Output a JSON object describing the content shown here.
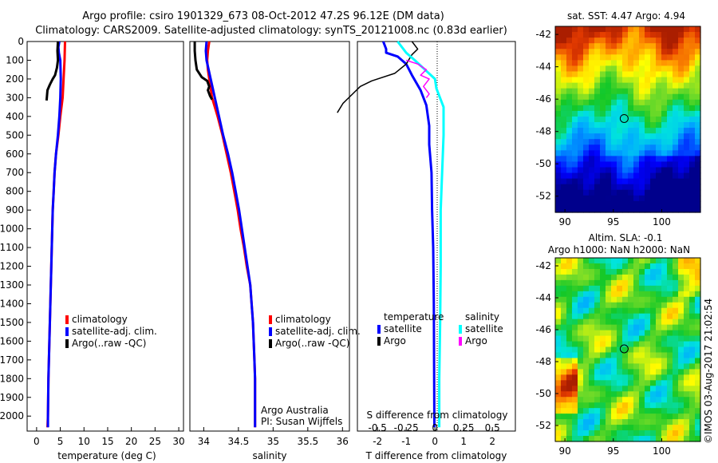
{
  "header": {
    "line1": "Argo profile: csiro 1901329_673 08-Oct-2012 47.2S 96.12E (DM data)",
    "line2": "Climatology: CARS2009. Satellite-adjusted climatology: synTS_20121008.nc (0.83d earlier)"
  },
  "credit": "©IMOS 03-Aug-2017 21:02:54",
  "colors": {
    "climatology": "#ff0000",
    "satellite": "#0000ff",
    "argo": "#000000",
    "sat_salinity": "#00ffff",
    "argo_salinity": "#ff00ff"
  },
  "chart_data": [
    {
      "type": "line",
      "id": "temperature",
      "xlabel": "temperature (deg C)",
      "xlim": [
        -2,
        31
      ],
      "ylim": [
        0,
        2080
      ],
      "xticks": [
        0,
        5,
        10,
        15,
        20,
        25,
        30
      ],
      "yticks": [
        0,
        100,
        200,
        300,
        400,
        500,
        600,
        700,
        800,
        900,
        1000,
        1100,
        1200,
        1300,
        1400,
        1500,
        1600,
        1700,
        1800,
        1900,
        2000
      ],
      "legend": [
        "climatology",
        "satellite-adj. clim.",
        "Argo(..raw -QC)"
      ],
      "series": [
        {
          "name": "climatology",
          "color": "#ff0000",
          "points": [
            [
              6.0,
              0
            ],
            [
              5.9,
              100
            ],
            [
              5.7,
              200
            ],
            [
              5.5,
              300
            ],
            [
              5.0,
              400
            ],
            [
              4.6,
              500
            ],
            [
              4.1,
              600
            ],
            [
              3.8,
              700
            ],
            [
              3.6,
              800
            ],
            [
              3.4,
              900
            ],
            [
              3.3,
              1000
            ],
            [
              3.1,
              1200
            ],
            [
              2.9,
              1400
            ],
            [
              2.7,
              1600
            ],
            [
              2.5,
              1800
            ],
            [
              2.4,
              2000
            ],
            [
              2.3,
              2060
            ]
          ]
        },
        {
          "name": "satellite-adj. clim.",
          "color": "#0000ff",
          "points": [
            [
              4.8,
              0
            ],
            [
              4.6,
              30
            ],
            [
              4.7,
              60
            ],
            [
              5.0,
              100
            ],
            [
              5.1,
              200
            ],
            [
              5.0,
              300
            ],
            [
              4.8,
              400
            ],
            [
              4.5,
              500
            ],
            [
              4.1,
              600
            ],
            [
              3.8,
              700
            ],
            [
              3.6,
              800
            ],
            [
              3.4,
              900
            ],
            [
              3.3,
              1000
            ],
            [
              3.1,
              1200
            ],
            [
              2.9,
              1400
            ],
            [
              2.7,
              1600
            ],
            [
              2.5,
              1800
            ],
            [
              2.4,
              2000
            ],
            [
              2.4,
              2060
            ]
          ]
        },
        {
          "name": "Argo(..raw -QC)",
          "color": "#000000",
          "points": [
            [
              4.5,
              0
            ],
            [
              4.4,
              50
            ],
            [
              4.5,
              100
            ],
            [
              4.3,
              140
            ],
            [
              3.9,
              180
            ],
            [
              3.4,
              200
            ],
            [
              2.8,
              230
            ],
            [
              2.3,
              260
            ],
            [
              2.2,
              290
            ],
            [
              2.1,
              315
            ]
          ]
        }
      ]
    },
    {
      "type": "line",
      "id": "salinity",
      "xlabel": "salinity",
      "xlim": [
        33.8,
        36.1
      ],
      "ylim": [
        0,
        2080
      ],
      "xticks": [
        34,
        34.5,
        35,
        35.5,
        36
      ],
      "legend": [
        "climatology",
        "satellite-adj. clim.",
        "Argo(..raw -QC)"
      ],
      "annotation": [
        "Argo Australia",
        "PI: Susan Wijffels"
      ],
      "series": [
        {
          "name": "climatology",
          "color": "#ff0000",
          "points": [
            [
              34.08,
              0
            ],
            [
              34.06,
              50
            ],
            [
              34.05,
              100
            ],
            [
              34.06,
              150
            ],
            [
              34.08,
              200
            ],
            [
              34.1,
              250
            ],
            [
              34.12,
              300
            ],
            [
              34.2,
              400
            ],
            [
              34.27,
              500
            ],
            [
              34.33,
              600
            ],
            [
              34.39,
              700
            ],
            [
              34.44,
              800
            ],
            [
              34.49,
              900
            ],
            [
              34.53,
              1000
            ],
            [
              34.58,
              1100
            ],
            [
              34.62,
              1200
            ],
            [
              34.67,
              1300
            ],
            [
              34.69,
              1400
            ],
            [
              34.71,
              1500
            ],
            [
              34.72,
              1600
            ],
            [
              34.73,
              1700
            ],
            [
              34.74,
              1800
            ],
            [
              34.74,
              2000
            ],
            [
              34.74,
              2060
            ]
          ]
        },
        {
          "name": "satellite-adj. clim.",
          "color": "#0000ff",
          "points": [
            [
              34.04,
              0
            ],
            [
              34.03,
              50
            ],
            [
              34.04,
              100
            ],
            [
              34.07,
              150
            ],
            [
              34.1,
              200
            ],
            [
              34.13,
              250
            ],
            [
              34.16,
              300
            ],
            [
              34.22,
              400
            ],
            [
              34.28,
              500
            ],
            [
              34.35,
              600
            ],
            [
              34.41,
              700
            ],
            [
              34.46,
              800
            ],
            [
              34.51,
              900
            ],
            [
              34.55,
              1000
            ],
            [
              34.59,
              1100
            ],
            [
              34.63,
              1200
            ],
            [
              34.67,
              1300
            ],
            [
              34.69,
              1400
            ],
            [
              34.71,
              1500
            ],
            [
              34.72,
              1600
            ],
            [
              34.73,
              1700
            ],
            [
              34.74,
              1800
            ],
            [
              34.74,
              2000
            ],
            [
              34.74,
              2060
            ]
          ]
        },
        {
          "name": "Argo(..raw -QC)",
          "color": "#000000",
          "points": [
            [
              33.87,
              0
            ],
            [
              33.87,
              50
            ],
            [
              33.88,
              100
            ],
            [
              33.9,
              150
            ],
            [
              33.97,
              190
            ],
            [
              34.05,
              210
            ],
            [
              34.08,
              240
            ],
            [
              34.06,
              260
            ],
            [
              34.09,
              290
            ],
            [
              34.12,
              310
            ]
          ]
        }
      ]
    },
    {
      "type": "line",
      "id": "difference",
      "xlabel": "T difference from climatology",
      "xlabel_top": "S difference from climatology",
      "xlim": [
        -2.7,
        2.8
      ],
      "ylim": [
        0,
        2080
      ],
      "xticks": [
        -2,
        -1,
        0,
        1,
        2
      ],
      "xticks_top": [
        "-0.5",
        "-0.25",
        "0",
        "0.25",
        "0.5"
      ],
      "legend": {
        "title_left": "temperature",
        "title_right": "salinity",
        "items": [
          "satellite",
          "Argo",
          "satellite",
          "Argo"
        ]
      },
      "series": [
        {
          "name": "satellite",
          "color": "#0000ff",
          "points": [
            [
              -1.8,
              0
            ],
            [
              -1.7,
              40
            ],
            [
              -1.7,
              60
            ],
            [
              -1.3,
              80
            ],
            [
              -1.0,
              120
            ],
            [
              -0.8,
              180
            ],
            [
              -0.5,
              260
            ],
            [
              -0.3,
              340
            ],
            [
              -0.2,
              450
            ],
            [
              -0.2,
              550
            ],
            [
              -0.12,
              700
            ],
            [
              -0.1,
              900
            ],
            [
              -0.06,
              1100
            ],
            [
              -0.04,
              1400
            ],
            [
              -0.03,
              1700
            ],
            [
              -0.02,
              2060
            ]
          ]
        },
        {
          "name": "Argo",
          "color": "#000000",
          "points": [
            [
              -0.8,
              0
            ],
            [
              -0.6,
              40
            ],
            [
              -0.8,
              70
            ],
            [
              -1.0,
              120
            ],
            [
              -1.4,
              170
            ],
            [
              -2.2,
              210
            ],
            [
              -2.6,
              240
            ],
            [
              -3.0,
              300
            ],
            [
              -3.2,
              330
            ],
            [
              -3.4,
              380
            ]
          ]
        },
        {
          "name": "satellite",
          "color": "#00ffff",
          "points": [
            [
              -1.3,
              0
            ],
            [
              -1.0,
              60
            ],
            [
              -0.7,
              100
            ],
            [
              -0.35,
              150
            ],
            [
              0.0,
              200
            ],
            [
              0.05,
              250
            ],
            [
              0.3,
              350
            ],
            [
              0.3,
              500
            ],
            [
              0.25,
              700
            ],
            [
              0.2,
              900
            ],
            [
              0.2,
              1200
            ],
            [
              0.18,
              1500
            ],
            [
              0.15,
              1800
            ],
            [
              0.15,
              2060
            ]
          ]
        },
        {
          "name": "Argo",
          "color": "#ff00ff",
          "points": [
            [
              -1.0,
              100
            ],
            [
              -0.6,
              120
            ],
            [
              -0.3,
              150
            ],
            [
              -0.5,
              180
            ],
            [
              -0.2,
              200
            ],
            [
              -0.4,
              240
            ],
            [
              -0.2,
              280
            ],
            [
              -0.3,
              300
            ]
          ]
        }
      ]
    },
    {
      "type": "heatmap",
      "id": "sst",
      "title": "sat. SST: 4.47  Argo: 4.94",
      "xticks": [
        90,
        95,
        100
      ],
      "yticks": [
        -42,
        -44,
        -46,
        -48,
        -50,
        -52
      ],
      "xlim": [
        89,
        104
      ],
      "ylim": [
        -53,
        -41.5
      ],
      "marker": [
        96.12,
        -47.2
      ]
    },
    {
      "type": "heatmap",
      "id": "sla",
      "title": "Altim. SLA: -0.1",
      "subtitle": "Argo h1000: NaN h2000: NaN",
      "xticks": [
        90,
        95,
        100
      ],
      "yticks": [
        -42,
        -44,
        -46,
        -48,
        -50,
        -52
      ],
      "xlim": [
        89,
        104
      ],
      "ylim": [
        -53,
        -41.5
      ],
      "marker": [
        96.12,
        -47.2
      ]
    }
  ]
}
